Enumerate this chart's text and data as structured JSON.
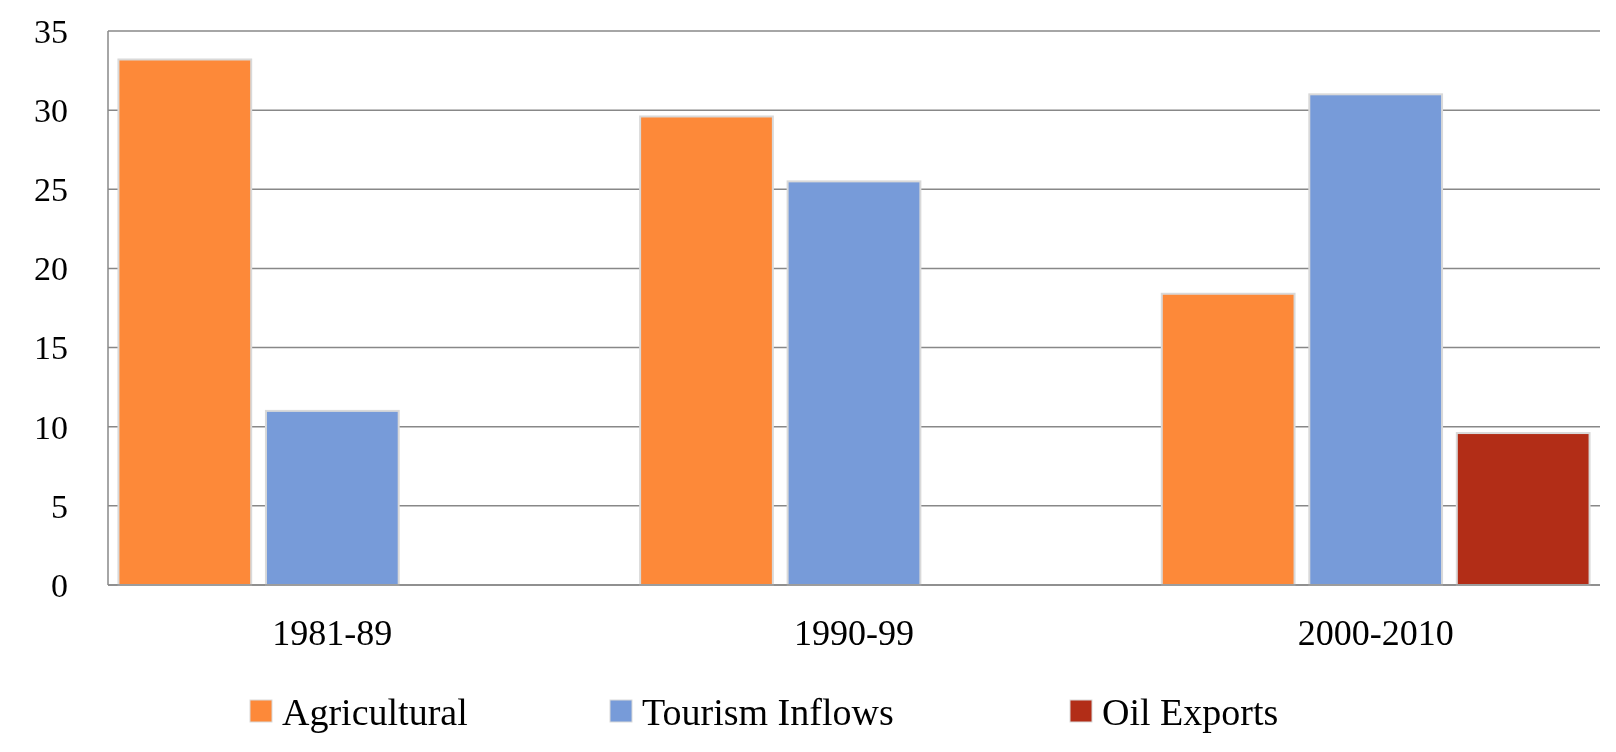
{
  "chart_data": {
    "type": "bar",
    "categories": [
      "1981-89",
      "1990-99",
      "2000-2010"
    ],
    "series": [
      {
        "name": "Agricultural",
        "color": "#fd8939",
        "values": [
          33.2,
          29.6,
          18.4
        ]
      },
      {
        "name": "Tourism Inflows",
        "color": "#779bd9",
        "values": [
          11,
          25.5,
          31
        ]
      },
      {
        "name": "Oil Exports",
        "color": "#b22d17",
        "values": [
          null,
          null,
          9.6
        ]
      }
    ],
    "ylim": [
      0,
      35
    ],
    "yticks": [
      0,
      5,
      10,
      15,
      20,
      25,
      30,
      35
    ],
    "grid": "y",
    "legend": "bottom"
  }
}
